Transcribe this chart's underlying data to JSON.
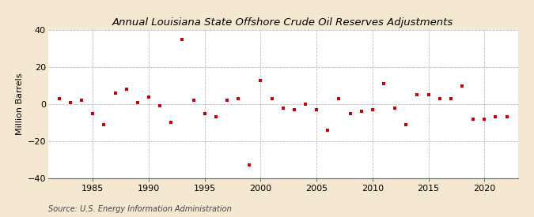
{
  "title": "Annual Louisiana State Offshore Crude Oil Reserves Adjustments",
  "ylabel": "Million Barrels",
  "source": "Source: U.S. Energy Information Administration",
  "xlim": [
    1981,
    2023
  ],
  "ylim": [
    -40,
    40
  ],
  "yticks": [
    -40,
    -20,
    0,
    20,
    40
  ],
  "xticks": [
    1985,
    1990,
    1995,
    2000,
    2005,
    2010,
    2015,
    2020
  ],
  "background_color": "#f5e8d0",
  "plot_background": "#ffffff",
  "marker_color": "#cc0000",
  "years": [
    1982,
    1983,
    1984,
    1985,
    1986,
    1987,
    1988,
    1989,
    1990,
    1991,
    1992,
    1993,
    1994,
    1995,
    1996,
    1997,
    1998,
    1999,
    2000,
    2001,
    2002,
    2003,
    2004,
    2005,
    2006,
    2007,
    2008,
    2009,
    2010,
    2011,
    2012,
    2013,
    2014,
    2015,
    2016,
    2017,
    2018,
    2019,
    2020,
    2021,
    2022
  ],
  "values": [
    3,
    1,
    2,
    -5,
    -11,
    6,
    8,
    1,
    4,
    -1,
    -10,
    35,
    2,
    -5,
    -7,
    2,
    3,
    -33,
    13,
    3,
    -2,
    -3,
    0,
    -3,
    -14,
    3,
    -5,
    -4,
    -3,
    11,
    -2,
    -11,
    5,
    5,
    3,
    3,
    10,
    -8,
    -8,
    -7,
    -7
  ]
}
